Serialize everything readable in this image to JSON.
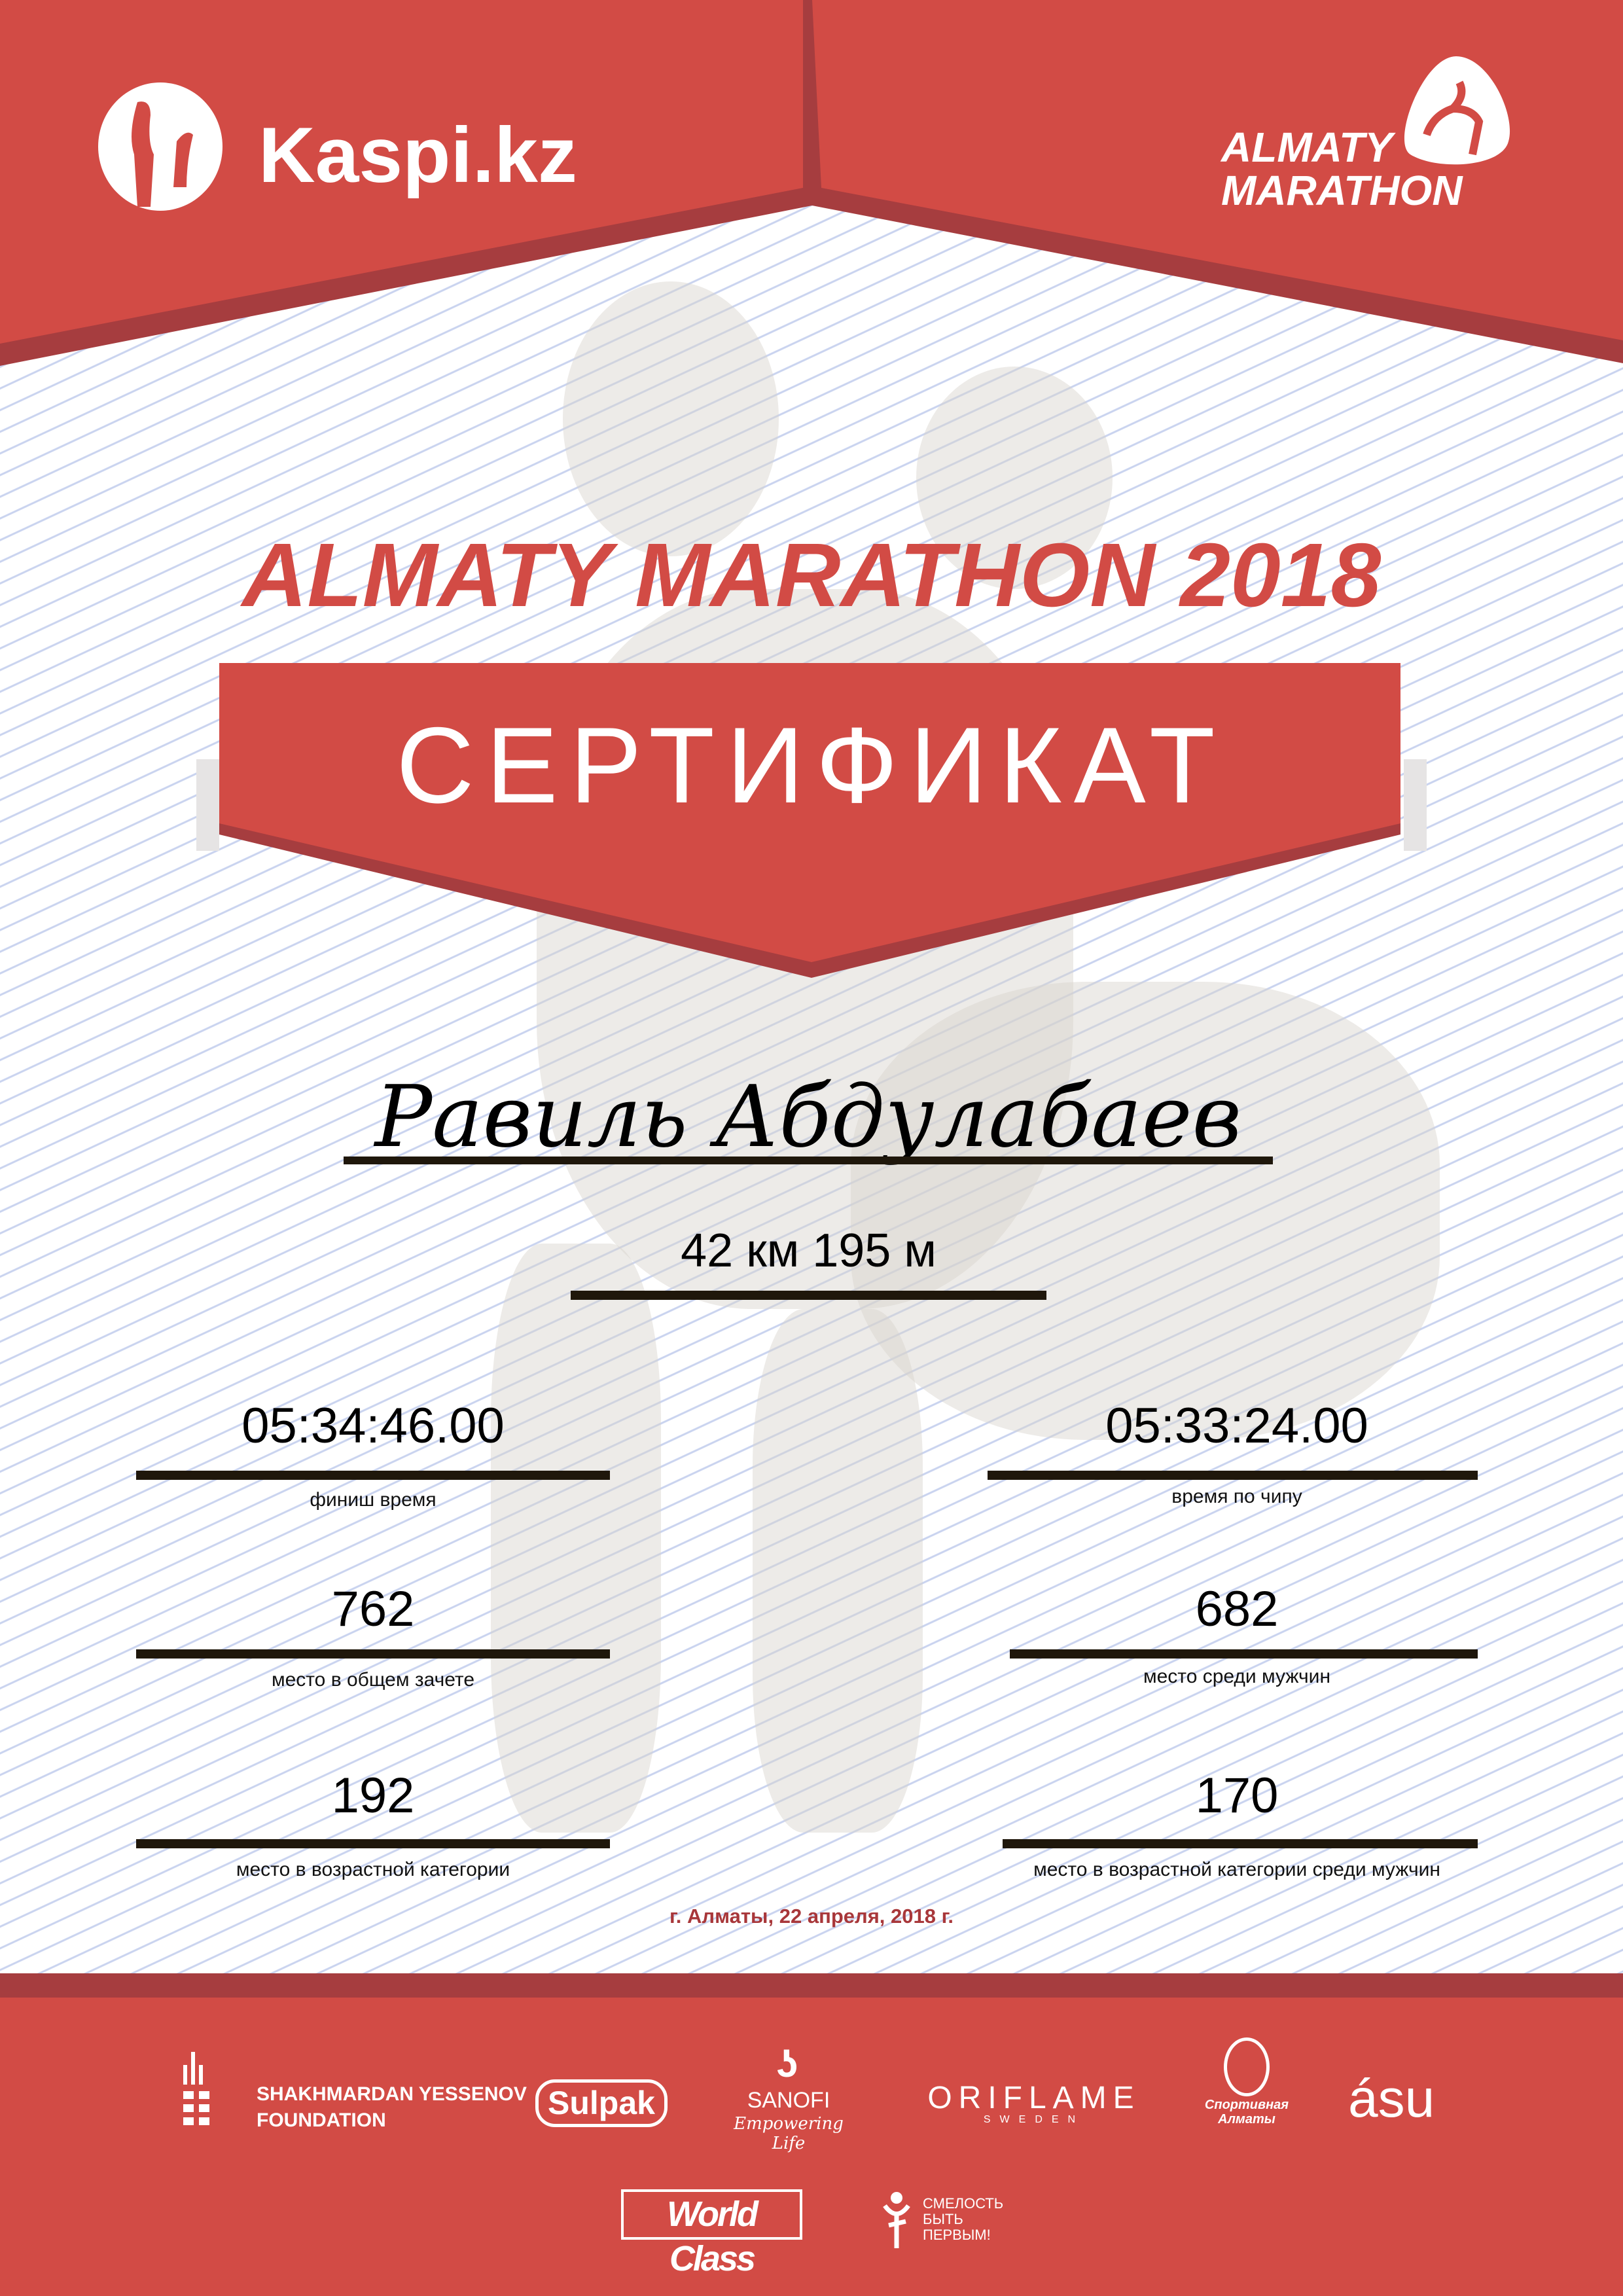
{
  "colors": {
    "brand_red": "#d24b45",
    "dark_red": "#a63d3f",
    "date_color": "#a8373a"
  },
  "header": {
    "sponsor_logo": "Kaspi.kz",
    "event_logo_line1": "ALMATY",
    "event_logo_line2": "MARATHON"
  },
  "title": "ALMATY MARATHON 2018",
  "banner": "СЕРТИФИКАТ",
  "participant": {
    "name": "Равиль Абдулабаев",
    "distance": "42 км 195 м"
  },
  "stats": [
    {
      "value": "05:34:46.00",
      "label": "финиш время"
    },
    {
      "value": "05:33:24.00",
      "label": "время по чипу"
    },
    {
      "value": "762",
      "label": "место в общем зачете"
    },
    {
      "value": "682",
      "label": "место среди мужчин"
    },
    {
      "value": "192",
      "label": "место в возрастной категории"
    },
    {
      "value": "170",
      "label": "место в возрастной категории среди мужчин"
    }
  ],
  "date": "г. Алматы, 22 апреля, 2018 г.",
  "sponsors": {
    "yessenov_line1": "SHAKHMARDAN YESSENOV",
    "yessenov_line2": "FOUNDATION",
    "sulpak": "Sulpak",
    "sanofi": "SANOFI",
    "sanofi_tag": "Empowering Life",
    "oriflame": "ORIFLAME",
    "oriflame_sub": "SWEDEN",
    "sport_almaty_line1": "Спортивная",
    "sport_almaty_line2": "Алматы",
    "asu": "ásu",
    "worldclass": "World Class",
    "smelost_line1": "СМЕЛОСТЬ",
    "smelost_line2": "БЫТЬ",
    "smelost_line3": "ПЕРВЫМ!"
  }
}
